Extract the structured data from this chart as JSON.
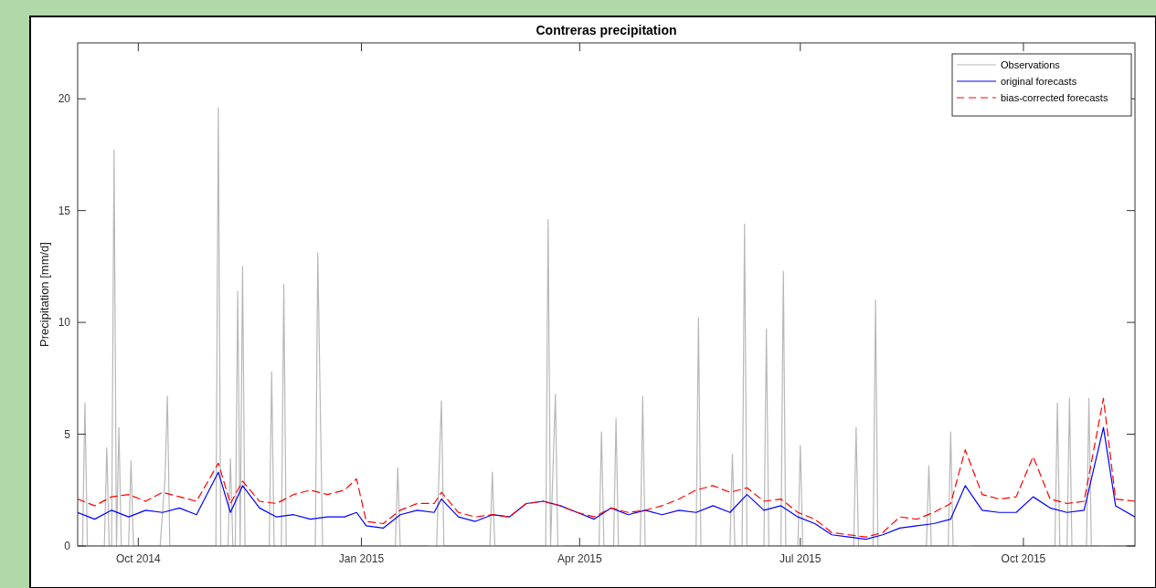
{
  "chart_data": {
    "type": "line",
    "title": "Contreras precipitation",
    "ylabel": "Precipitation [mm/d]",
    "xlim": [
      "2014-09-06",
      "2015-11-16"
    ],
    "xticks": [
      {
        "value": "2014-10-01",
        "label": "Oct 2014"
      },
      {
        "value": "2015-01-01",
        "label": "Jan 2015"
      },
      {
        "value": "2015-04-01",
        "label": "Apr 2015"
      },
      {
        "value": "2015-07-01",
        "label": "Jul 2015"
      },
      {
        "value": "2015-10-01",
        "label": "Oct 2015"
      }
    ],
    "ylim": [
      0,
      22.5
    ],
    "yticks": [
      0,
      5,
      10,
      15,
      20
    ],
    "grid": false,
    "legend": "top right",
    "series": [
      {
        "name": "Observations",
        "color": "#b8b8b8",
        "line_style": "solid",
        "x": [
          "2014-09-06",
          "2014-09-08",
          "2014-09-09",
          "2014-09-10",
          "2014-09-17",
          "2014-09-18",
          "2014-09-19",
          "2014-09-20",
          "2014-09-21",
          "2014-09-22",
          "2014-09-23",
          "2014-09-24",
          "2014-09-27",
          "2014-09-28",
          "2014-09-29",
          "2014-10-10",
          "2014-10-12",
          "2014-10-13",
          "2014-10-14",
          "2014-11-02",
          "2014-11-03",
          "2014-11-04",
          "2014-11-07",
          "2014-11-08",
          "2014-11-09",
          "2014-11-10",
          "2014-11-11",
          "2014-11-12",
          "2014-11-13",
          "2014-11-14",
          "2014-11-24",
          "2014-11-25",
          "2014-11-26",
          "2014-11-27",
          "2014-11-28",
          "2014-11-29",
          "2014-11-30",
          "2014-12-01",
          "2014-12-12",
          "2014-12-13",
          "2014-12-14",
          "2014-12-16",
          "2015-01-15",
          "2015-01-16",
          "2015-01-17",
          "2015-01-29",
          "2015-01-30",
          "2015-01-31",
          "2015-02-01",
          "2015-02-03",
          "2015-02-04",
          "2015-02-23",
          "2015-02-24",
          "2015-02-25",
          "2015-03-18",
          "2015-03-19",
          "2015-03-20",
          "2015-03-22",
          "2015-03-23",
          "2015-03-24",
          "2015-03-25",
          "2015-04-09",
          "2015-04-10",
          "2015-04-11",
          "2015-04-15",
          "2015-04-16",
          "2015-04-17",
          "2015-04-26",
          "2015-04-27",
          "2015-04-28",
          "2015-05-19",
          "2015-05-20",
          "2015-05-21",
          "2015-06-02",
          "2015-06-03",
          "2015-06-04",
          "2015-06-07",
          "2015-06-08",
          "2015-06-09",
          "2015-06-16",
          "2015-06-17",
          "2015-06-18",
          "2015-06-23",
          "2015-06-24",
          "2015-06-25",
          "2015-06-30",
          "2015-07-01",
          "2015-07-02",
          "2015-07-23",
          "2015-07-24",
          "2015-07-25",
          "2015-07-31",
          "2015-08-01",
          "2015-08-02",
          "2015-08-22",
          "2015-08-23",
          "2015-08-24",
          "2015-08-31",
          "2015-09-01",
          "2015-09-02",
          "2015-09-04",
          "2015-09-05",
          "2015-09-08",
          "2015-09-09",
          "2015-10-14",
          "2015-10-15",
          "2015-10-16",
          "2015-10-19",
          "2015-10-20",
          "2015-10-21",
          "2015-10-27",
          "2015-10-28",
          "2015-10-29",
          "2015-11-02",
          "2015-11-03",
          "2015-11-04",
          "2015-11-16"
        ],
        "values": [
          0,
          0,
          6.4,
          0,
          0,
          4.4,
          0,
          0,
          17.7,
          0,
          5.3,
          0,
          0,
          3.8,
          0,
          0,
          3,
          6.7,
          0,
          0,
          19.6,
          0,
          0,
          3.9,
          0,
          0,
          11.4,
          0,
          12.5,
          0,
          0,
          7.8,
          0,
          0,
          null,
          0,
          11.7,
          0,
          0,
          0,
          13.1,
          0,
          0,
          3.5,
          0,
          0,
          null,
          null,
          0,
          6.5,
          0,
          0,
          3.3,
          0,
          0,
          14.6,
          0,
          6.8,
          0,
          null,
          0,
          0,
          5.1,
          0,
          0,
          5.7,
          0,
          0,
          6.7,
          0,
          0,
          10.2,
          0,
          0,
          4.1,
          0,
          0,
          14.4,
          0,
          0,
          9.7,
          0,
          0,
          12.3,
          0,
          0,
          4.5,
          0,
          0,
          5.3,
          0,
          0,
          11,
          0,
          0,
          3.6,
          0,
          0,
          5.1,
          0,
          0,
          null,
          null,
          0,
          0,
          6.4,
          0,
          0,
          6.6,
          0,
          0,
          6.6,
          0,
          0,
          null,
          0,
          0
        ]
      },
      {
        "name": "original forecasts",
        "color": "#0000ff",
        "line_style": "solid",
        "x": [
          "2014-09-06",
          "2014-09-13",
          "2014-09-20",
          "2014-09-27",
          "2014-10-04",
          "2014-10-11",
          "2014-10-18",
          "2014-10-25",
          "2014-11-03",
          "2014-11-08",
          "2014-11-13",
          "2014-11-20",
          "2014-11-27",
          "2014-12-04",
          "2014-12-11",
          "2014-12-18",
          "2014-12-25",
          "2014-12-30",
          "2015-01-03",
          "2015-01-10",
          "2015-01-17",
          "2015-01-24",
          "2015-01-31",
          "2015-02-03",
          "2015-02-10",
          "2015-02-17",
          "2015-02-24",
          "2015-03-03",
          "2015-03-10",
          "2015-03-17",
          "2015-03-24",
          "2015-03-31",
          "2015-04-07",
          "2015-04-14",
          "2015-04-21",
          "2015-04-28",
          "2015-05-05",
          "2015-05-12",
          "2015-05-19",
          "2015-05-26",
          "2015-06-02",
          "2015-06-09",
          "2015-06-16",
          "2015-06-23",
          "2015-06-30",
          "2015-07-07",
          "2015-07-14",
          "2015-07-21",
          "2015-07-28",
          "2015-08-04",
          "2015-08-11",
          "2015-08-18",
          "2015-08-25",
          "2015-09-01",
          "2015-09-07",
          "2015-09-14",
          "2015-09-21",
          "2015-09-28",
          "2015-10-05",
          "2015-10-12",
          "2015-10-19",
          "2015-10-26",
          "2015-11-03",
          "2015-11-08",
          "2015-11-16"
        ],
        "values": [
          1.5,
          1.2,
          1.6,
          1.3,
          1.6,
          1.5,
          1.7,
          1.4,
          3.3,
          1.5,
          2.7,
          1.7,
          1.3,
          1.4,
          1.2,
          1.3,
          1.3,
          1.5,
          0.9,
          0.8,
          1.4,
          1.6,
          1.5,
          2.1,
          1.3,
          1.1,
          1.4,
          1.3,
          1.9,
          2.0,
          1.8,
          1.5,
          1.2,
          1.7,
          1.4,
          1.6,
          1.4,
          1.6,
          1.5,
          1.8,
          1.5,
          2.3,
          1.6,
          1.8,
          1.3,
          1.0,
          0.5,
          0.4,
          0.3,
          0.5,
          0.8,
          0.9,
          1.0,
          1.2,
          2.7,
          1.6,
          1.5,
          1.5,
          2.2,
          1.7,
          1.5,
          1.6,
          5.3,
          1.8,
          1.3
        ]
      },
      {
        "name": "bias-corrected forecasts",
        "color": "#ff0000",
        "line_style": "dashed",
        "x": [
          "2014-09-06",
          "2014-09-13",
          "2014-09-20",
          "2014-09-27",
          "2014-10-04",
          "2014-10-11",
          "2014-10-18",
          "2014-10-25",
          "2014-11-03",
          "2014-11-08",
          "2014-11-13",
          "2014-11-20",
          "2014-11-27",
          "2014-12-04",
          "2014-12-11",
          "2014-12-18",
          "2014-12-25",
          "2014-12-30",
          "2015-01-03",
          "2015-01-10",
          "2015-01-17",
          "2015-01-24",
          "2015-01-31",
          "2015-02-03",
          "2015-02-10",
          "2015-02-17",
          "2015-02-24",
          "2015-03-03",
          "2015-03-10",
          "2015-03-17",
          "2015-03-24",
          "2015-03-31",
          "2015-04-07",
          "2015-04-14",
          "2015-04-21",
          "2015-04-28",
          "2015-05-05",
          "2015-05-12",
          "2015-05-19",
          "2015-05-26",
          "2015-06-02",
          "2015-06-09",
          "2015-06-16",
          "2015-06-23",
          "2015-06-30",
          "2015-07-07",
          "2015-07-14",
          "2015-07-21",
          "2015-07-28",
          "2015-08-04",
          "2015-08-11",
          "2015-08-18",
          "2015-08-25",
          "2015-09-01",
          "2015-09-07",
          "2015-09-14",
          "2015-09-21",
          "2015-09-28",
          "2015-10-05",
          "2015-10-12",
          "2015-10-19",
          "2015-10-26",
          "2015-11-03",
          "2015-11-08",
          "2015-11-16"
        ],
        "values": [
          2.1,
          1.8,
          2.2,
          2.3,
          2.0,
          2.4,
          2.2,
          2.0,
          3.7,
          1.9,
          2.9,
          2.0,
          1.9,
          2.3,
          2.5,
          2.3,
          2.5,
          3.0,
          1.1,
          1.0,
          1.6,
          1.9,
          1.9,
          2.4,
          1.5,
          1.3,
          1.4,
          1.3,
          1.9,
          2.0,
          1.8,
          1.5,
          1.3,
          1.7,
          1.5,
          1.6,
          1.8,
          2.1,
          2.5,
          2.7,
          2.4,
          2.6,
          2.0,
          2.1,
          1.5,
          1.2,
          0.6,
          0.5,
          0.4,
          0.6,
          1.3,
          1.2,
          1.5,
          1.9,
          4.3,
          2.3,
          2.1,
          2.2,
          4.0,
          2.1,
          1.9,
          2.0,
          6.6,
          2.1,
          2.0
        ]
      }
    ]
  }
}
